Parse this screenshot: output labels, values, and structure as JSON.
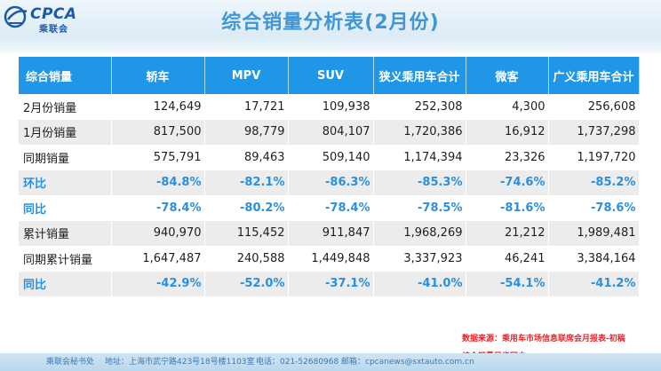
{
  "header": {
    "logo_text": "CPCA",
    "logo_cn": "乘联会",
    "title": "综合销量分析表(2月份)"
  },
  "table": {
    "headers": [
      "综合销量",
      "轿车",
      "MPV",
      "SUV",
      "狭义乘用车合计",
      "微客",
      "广义乘用车合计"
    ],
    "rows": [
      {
        "label": "2月份销量",
        "values": [
          "124,649",
          "17,721",
          "109,938",
          "252,308",
          "4,300",
          "256,608"
        ]
      },
      {
        "label": "1月份销量",
        "values": [
          "817,500",
          "98,779",
          "804,107",
          "1,720,386",
          "16,912",
          "1,737,298"
        ]
      },
      {
        "label": "同期销量",
        "values": [
          "575,791",
          "89,463",
          "509,140",
          "1,174,394",
          "23,326",
          "1,197,720"
        ]
      },
      {
        "label": "环比",
        "values": [
          "-84.8%",
          "-82.1%",
          "-86.3%",
          "-85.3%",
          "-74.6%",
          "-85.2%"
        ]
      },
      {
        "label": "同比",
        "values": [
          "-78.4%",
          "-80.2%",
          "-78.4%",
          "-78.5%",
          "-81.6%",
          "-78.6%"
        ]
      },
      {
        "label": "累计销量",
        "values": [
          "940,970",
          "115,452",
          "911,847",
          "1,968,269",
          "21,212",
          "1,989,481"
        ]
      },
      {
        "label": "同期累计销量",
        "values": [
          "1,647,487",
          "240,588",
          "1,449,848",
          "3,337,923",
          "46,241",
          "3,384,164"
        ]
      },
      {
        "label": "同比",
        "values": [
          "-42.9%",
          "-52.0%",
          "-37.1%",
          "-41.0%",
          "-54.1%",
          "-41.2%"
        ]
      }
    ]
  },
  "notes": {
    "source": "数据来源：乘用车市场信息联席会月报表-初稿",
    "definition": "综合销量是指国内"
  },
  "footer": {
    "org": "乘联会秘书处",
    "address": "地址：上海市武宁路423号18号楼1103室",
    "phone": "电话：021-52680968",
    "email": "邮箱：cpcanews@sxtauto.com.cn"
  }
}
